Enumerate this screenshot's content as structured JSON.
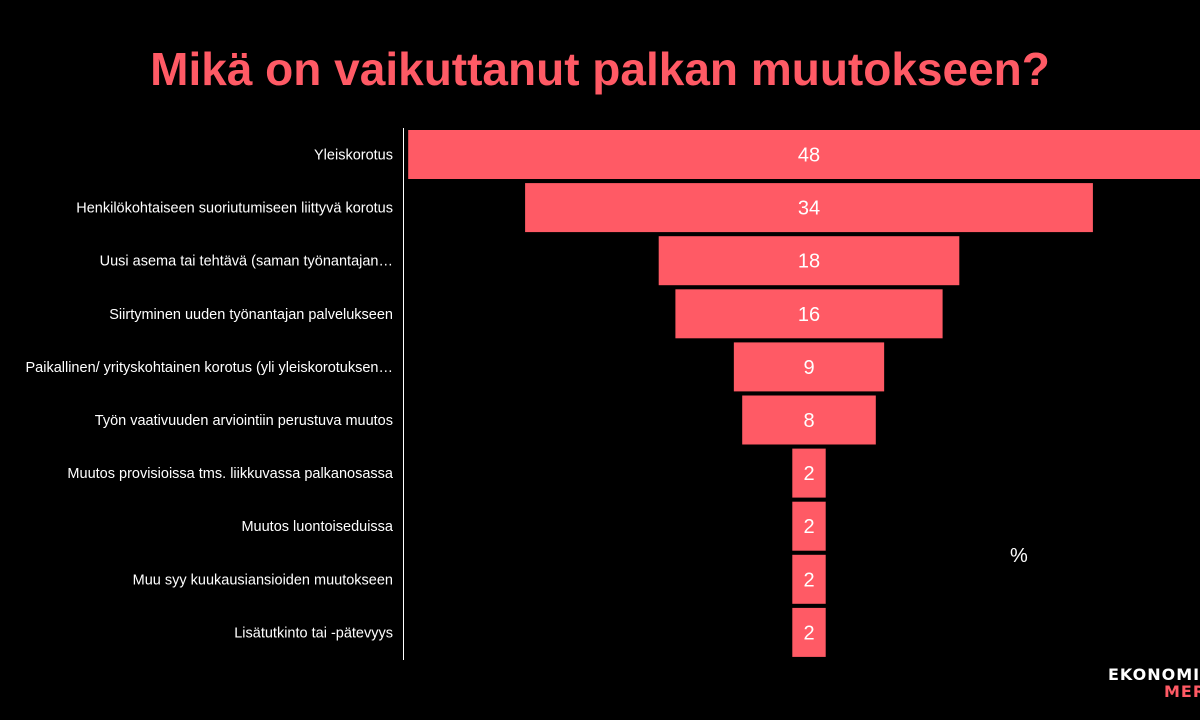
{
  "colors": {
    "accent": "#ff5a65",
    "background": "#000000",
    "text": "#ffffff"
  },
  "chart_data": {
    "type": "bar",
    "orientation": "horizontal",
    "style": "funnel (bars centered)",
    "title": "Mikä on vaikuttanut palkan muutokseen?",
    "unit_label": "%",
    "categories": [
      "Yleiskorotus",
      "Henkilökohtaiseen suoriutumiseen liittyvä korotus",
      "Uusi asema tai tehtävä (saman työnantajan…",
      "Siirtyminen uuden työnantajan palvelukseen",
      "Paikallinen/ yrityskohtainen korotus (yli yleiskorotuksen…",
      "Työn vaativuuden arviointiin perustuva muutos",
      "Muutos provisioissa tms. liikkuvassa palkanosassa",
      "Muutos luontoiseduissa",
      "Muu syy kuukausiansioiden muutokseen",
      "Lisätutkinto tai -pätevyys"
    ],
    "values": [
      48,
      34,
      18,
      16,
      9,
      8,
      2,
      2,
      2,
      2
    ],
    "data_labels": [
      "48",
      "34",
      "18",
      "16",
      "9",
      "8",
      "2",
      "2",
      "2",
      "2"
    ],
    "grid": false,
    "legend": "none"
  },
  "logo": {
    "line1": "EKONOMIT",
    "line2": "MER"
  }
}
